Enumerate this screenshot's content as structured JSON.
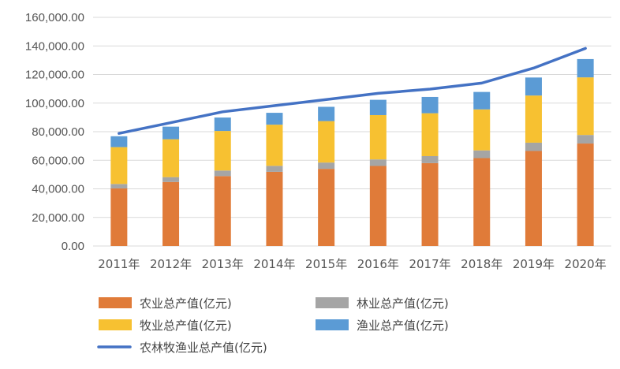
{
  "chart_data": {
    "type": "bar",
    "stacked": true,
    "categories": [
      "2011年",
      "2012年",
      "2013年",
      "2014年",
      "2015年",
      "2016年",
      "2017年",
      "2018年",
      "2019年",
      "2020年"
    ],
    "series": [
      {
        "name": "农业总产值(亿元)",
        "kind": "bar",
        "color": "#E07B39",
        "values": [
          40300,
          44800,
          48900,
          51900,
          54000,
          56000,
          58000,
          61500,
          66500,
          71700
        ]
      },
      {
        "name": "林业总产值(亿元)",
        "kind": "bar",
        "color": "#A5A5A5",
        "values": [
          3100,
          3400,
          3900,
          4200,
          4400,
          4600,
          4900,
          5400,
          5800,
          6000
        ]
      },
      {
        "name": "牧业总产值(亿元)",
        "kind": "bar",
        "color": "#F7C131",
        "values": [
          25800,
          26500,
          27700,
          28800,
          29000,
          31000,
          30000,
          28700,
          33000,
          40300
        ]
      },
      {
        "name": "渔业总产值(亿元)",
        "kind": "bar",
        "color": "#5B9BD5",
        "values": [
          7600,
          8800,
          9400,
          8300,
          10000,
          10700,
          11400,
          12200,
          12600,
          12800
        ]
      },
      {
        "name": "农林牧渔业总产值(亿元)",
        "kind": "line",
        "color": "#4472C4",
        "values": [
          78800,
          86300,
          93900,
          98200,
          102500,
          106800,
          109800,
          114000,
          124500,
          138300
        ]
      }
    ],
    "ylim": [
      0,
      160000
    ],
    "yticks": [
      "0.00",
      "20,000.00",
      "40,000.00",
      "60,000.00",
      "80,000.00",
      "100,000.00",
      "120,000.00",
      "140,000.00",
      "160,000.00"
    ],
    "title": "",
    "xlabel": "",
    "ylabel": "",
    "grid": true,
    "legend_position": "bottom"
  }
}
